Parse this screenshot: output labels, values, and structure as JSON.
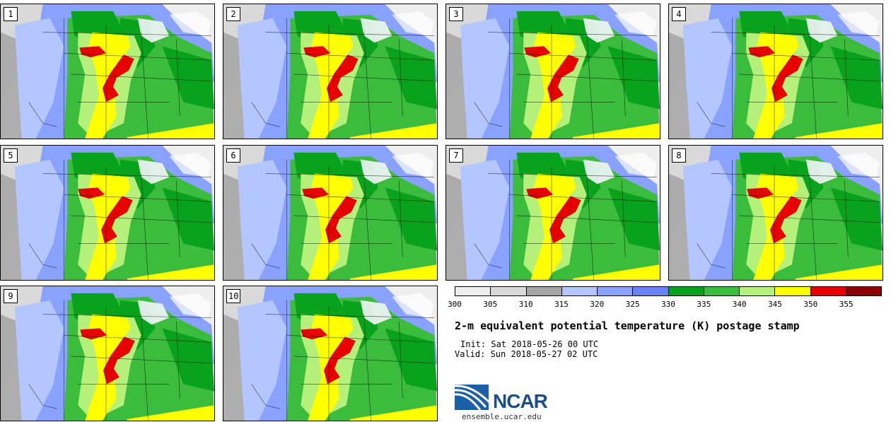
{
  "title": "2-m equivalent potential temperature (K) postage stamp",
  "init": "Init: Sat 2018-05-26 00 UTC",
  "valid": "Valid: Sun 2018-05-27 02 UTC",
  "logo_text": "NCAR",
  "url": "ensemble.ucar.edu",
  "members": [
    "1",
    "2",
    "3",
    "4",
    "5",
    "6",
    "7",
    "8",
    "9",
    "10"
  ],
  "colorbar": {
    "colors": [
      "#eeeeee",
      "#d9d9d9",
      "#a6a6a6",
      "#b3c6ff",
      "#8aa2ff",
      "#6b82f2",
      "#09a21c",
      "#3cbc3c",
      "#b5f17a",
      "#ffff00",
      "#e60000",
      "#8b0000"
    ],
    "ticks": [
      "300",
      "305",
      "310",
      "315",
      "320",
      "325",
      "330",
      "335",
      "340",
      "345",
      "350",
      "355"
    ]
  }
}
